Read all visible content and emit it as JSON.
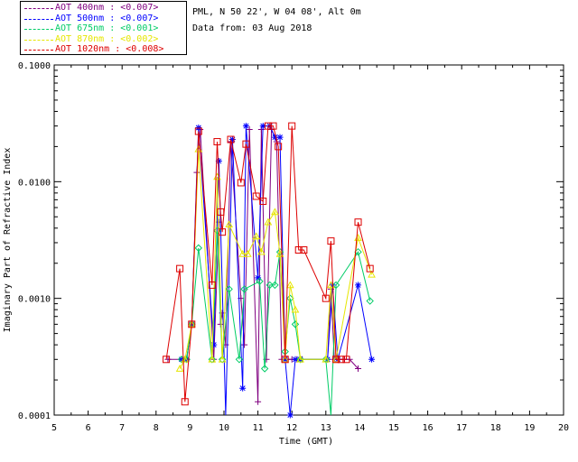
{
  "header": {
    "site": "PML, N 50 22', W 04 08', Alt 0m",
    "date": "Data from: 03 Aug 2018"
  },
  "legend": [
    {
      "label": "AOT  400nm : <0.007>",
      "color": "#800080"
    },
    {
      "label": "AOT  500nm : <0.007>",
      "color": "#0000ff"
    },
    {
      "label": "AOT  675nm : <0.001>",
      "color": "#00cc66"
    },
    {
      "label": "AOT  870nm : <0.002>",
      "color": "#e6e600"
    },
    {
      "label": "AOT 1020nm : <0.008>",
      "color": "#dd0000"
    }
  ],
  "chart_data": {
    "type": "line",
    "xlabel": "Time (GMT)",
    "ylabel": "Imaginary Part of Refractive Index",
    "xlim": [
      5,
      20
    ],
    "ylim": [
      0.0001,
      0.1
    ],
    "yscale": "log",
    "x_ticks": [
      "5",
      "6",
      "7",
      "8",
      "9",
      "10",
      "11",
      "12",
      "13",
      "14",
      "15",
      "16",
      "17",
      "18",
      "19",
      "20"
    ],
    "y_ticks": [
      "0.0001",
      "0.0010",
      "0.0100",
      "0.1000"
    ],
    "series": [
      {
        "name": "AOT 400nm",
        "color": "#800080",
        "marker": "plus",
        "x": [
          8.35,
          8.75,
          8.9,
          9.05,
          9.2,
          9.3,
          9.7,
          9.85,
          9.9,
          9.95,
          10.05,
          10.2,
          10.5,
          10.6,
          10.75,
          11.0,
          11.1,
          11.25,
          11.4,
          11.55,
          11.7,
          11.85,
          12.0,
          12.15,
          12.3,
          13.05,
          13.15,
          13.25,
          13.4,
          13.55,
          13.7,
          13.95
        ],
        "y": [
          0.0003,
          0.0003,
          0.0003,
          0.0006,
          0.012,
          0.028,
          0.0003,
          0.0045,
          0.0006,
          0.00075,
          0.0004,
          0.022,
          0.001,
          0.0004,
          0.028,
          0.00013,
          0.028,
          0.0003,
          0.028,
          0.022,
          0.0003,
          0.0003,
          0.0003,
          0.0003,
          0.0003,
          0.0003,
          0.0012,
          0.0003,
          0.0003,
          0.0003,
          0.0003,
          0.00025
        ]
      },
      {
        "name": "AOT 500nm",
        "color": "#0000ff",
        "marker": "star",
        "x": [
          8.75,
          8.9,
          9.05,
          9.25,
          9.7,
          9.85,
          10.05,
          10.25,
          10.55,
          10.65,
          11.0,
          11.15,
          11.35,
          11.5,
          11.65,
          11.8,
          11.95,
          12.1,
          12.25,
          13.05,
          13.2,
          13.35,
          13.95,
          14.35
        ],
        "y": [
          0.0003,
          0.0003,
          0.0006,
          0.029,
          0.0004,
          0.015,
          9e-05,
          0.023,
          0.00017,
          0.03,
          0.0015,
          0.03,
          0.03,
          0.024,
          0.024,
          0.0003,
          0.0001,
          0.0003,
          0.0003,
          0.0003,
          0.0013,
          0.0003,
          0.0013,
          0.0003
        ]
      },
      {
        "name": "AOT 675nm",
        "color": "#00cc66",
        "marker": "diamond",
        "x": [
          8.75,
          8.9,
          9.05,
          9.25,
          9.65,
          9.8,
          9.95,
          10.15,
          10.45,
          10.6,
          11.05,
          11.2,
          11.35,
          11.5,
          11.65,
          11.8,
          11.95,
          12.1,
          12.25,
          13.0,
          13.15,
          13.3,
          13.95,
          14.3
        ],
        "y": [
          0.0003,
          0.0003,
          0.0006,
          0.0027,
          0.0003,
          0.0038,
          0.0003,
          0.0012,
          0.0003,
          0.0012,
          0.0014,
          0.00025,
          0.0013,
          0.0013,
          0.0025,
          0.00035,
          0.001,
          0.0006,
          0.0003,
          0.0003,
          9e-05,
          0.0013,
          0.0025,
          0.00095
        ]
      },
      {
        "name": "AOT 870nm",
        "color": "#e6e600",
        "marker": "triangle",
        "x": [
          8.7,
          8.85,
          9.05,
          9.25,
          9.65,
          9.8,
          9.95,
          10.15,
          10.55,
          10.7,
          10.95,
          11.1,
          11.3,
          11.5,
          11.65,
          11.8,
          11.95,
          12.1,
          12.25,
          13.0,
          13.15,
          13.3,
          13.95,
          14.35
        ],
        "y": [
          0.00025,
          0.0003,
          0.0006,
          0.019,
          0.0003,
          0.011,
          0.0003,
          0.0043,
          0.0024,
          0.0024,
          0.0034,
          0.0025,
          0.0045,
          0.0055,
          0.0024,
          0.0003,
          0.0013,
          0.0008,
          0.0003,
          0.0003,
          0.0013,
          0.0003,
          0.0033,
          0.0016
        ]
      },
      {
        "name": "AOT 1020nm",
        "color": "#dd0000",
        "marker": "square",
        "x": [
          8.3,
          8.7,
          8.85,
          9.05,
          9.25,
          9.65,
          9.8,
          9.9,
          9.95,
          10.2,
          10.5,
          10.65,
          10.95,
          11.15,
          11.3,
          11.45,
          11.6,
          11.8,
          12.0,
          12.2,
          12.35,
          13.0,
          13.15,
          13.3,
          13.45,
          13.6,
          13.95,
          14.3
        ],
        "y": [
          0.0003,
          0.0018,
          0.00013,
          0.0006,
          0.027,
          0.0013,
          0.022,
          0.0055,
          0.0037,
          0.023,
          0.0098,
          0.021,
          0.0075,
          0.0068,
          0.03,
          0.03,
          0.02,
          0.0003,
          0.03,
          0.0026,
          0.0026,
          0.001,
          0.0031,
          0.0003,
          0.0003,
          0.0003,
          0.0045,
          0.0018
        ]
      }
    ]
  }
}
